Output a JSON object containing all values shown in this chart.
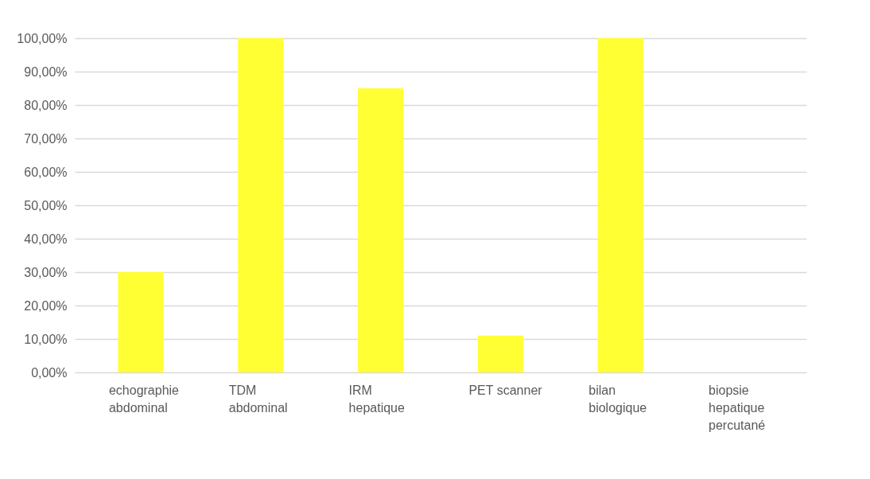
{
  "chart_data": {
    "type": "bar",
    "categories": [
      "echographie abdominal",
      "TDM abdominal",
      "IRM hepatique",
      "PET scanner",
      "bilan biologique",
      "biopsie hepatique percutané"
    ],
    "values": [
      30,
      100,
      85,
      11,
      100,
      0
    ],
    "color": "#ffff33",
    "ylim": [
      0,
      100
    ],
    "yticks": [
      {
        "value": 0,
        "label": "0,00%"
      },
      {
        "value": 10,
        "label": "10,00%"
      },
      {
        "value": 20,
        "label": "20,00%"
      },
      {
        "value": 30,
        "label": "30,00%"
      },
      {
        "value": 40,
        "label": "40,00%"
      },
      {
        "value": 50,
        "label": "50,00%"
      },
      {
        "value": 60,
        "label": "60,00%"
      },
      {
        "value": 70,
        "label": "70,00%"
      },
      {
        "value": 80,
        "label": "80,00%"
      },
      {
        "value": 90,
        "label": "90,00%"
      },
      {
        "value": 100,
        "label": "100,00%"
      }
    ],
    "grid": "y"
  }
}
